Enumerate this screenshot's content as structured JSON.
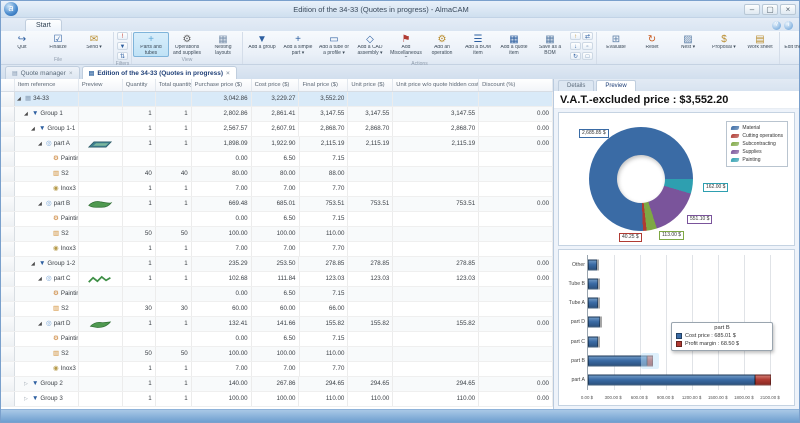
{
  "window": {
    "title": "Edition of the 34-33 (Quotes in progress) - AlmaCAM",
    "logo_letter": "a",
    "controls": {
      "minimize": "–",
      "maximize": "▢",
      "close": "×"
    }
  },
  "ribbon": {
    "tab": "Start",
    "help_icons": [
      "?",
      "i"
    ],
    "groups": [
      {
        "label": "File",
        "buttons": [
          {
            "label": "Quit",
            "glyph": "↪",
            "color": "#2d5fa0"
          },
          {
            "label": "Finalize",
            "glyph": "☑",
            "color": "#2d5fa0"
          },
          {
            "label": "Send",
            "glyph": "✉",
            "color": "#b98d2f",
            "dropdown": true
          }
        ]
      },
      {
        "label": "Filters",
        "buttons": [],
        "mini_cols": 1,
        "minis": [
          {
            "glyph": "!",
            "color": "#c0392b"
          },
          {
            "glyph": "▼",
            "color": "#2d5fa0"
          },
          {
            "glyph": "⇅",
            "color": "#2d5fa0"
          }
        ]
      },
      {
        "label": "View",
        "buttons": [
          {
            "label": "Parts and tubes",
            "glyph": "+",
            "color": "#5fa8d6",
            "selected": true
          },
          {
            "label": "Operations and supplies",
            "glyph": "⚙",
            "color": "#666666"
          },
          {
            "label": "Nesting layouts",
            "glyph": "▦",
            "color": "#7d93ad"
          }
        ]
      },
      {
        "label": "Actions",
        "buttons": [
          {
            "label": "Add a group",
            "glyph": "▼",
            "color": "#2d5fa0"
          },
          {
            "label": "Add a simple part",
            "glyph": "+",
            "color": "#2d5fa0",
            "dropdown": true
          },
          {
            "label": "Add a tube or a profile",
            "glyph": "▭",
            "color": "#2d5fa0",
            "dropdown": true
          },
          {
            "label": "Add a CAD assembly",
            "glyph": "◇",
            "color": "#2d5fa0",
            "dropdown": true
          },
          {
            "label": "Add Miscellaneous",
            "glyph": "⚑",
            "color": "#b03b33",
            "dropdown": true
          },
          {
            "label": "Add an operation",
            "glyph": "⚙",
            "color": "#b98d2f"
          },
          {
            "label": "Add a BOM item",
            "glyph": "☰",
            "color": "#2d5fa0"
          },
          {
            "label": "Add a quote item",
            "glyph": "▦",
            "color": "#2d5fa0"
          },
          {
            "label": "Save as a BOM",
            "glyph": "▦",
            "color": "#5a7da5"
          }
        ],
        "mini_cols": 2,
        "minis": [
          {
            "glyph": "↑",
            "color": "#b98d2f"
          },
          {
            "glyph": "↓",
            "color": "#2d5fa0"
          },
          {
            "glyph": "↻",
            "color": "#2d5fa0"
          },
          {
            "glyph": "⇄",
            "color": "#2d5fa0"
          },
          {
            "glyph": "▫",
            "color": "#5a7da5"
          },
          {
            "glyph": "□",
            "color": "#5a7da5"
          }
        ]
      },
      {
        "label": "",
        "buttons": [
          {
            "label": "Evaluate",
            "glyph": "⊞",
            "color": "#5a7da5"
          },
          {
            "label": "Reset",
            "glyph": "↻",
            "color": "#c85a1e"
          },
          {
            "label": "Nest",
            "glyph": "▨",
            "color": "#5a7da5",
            "dropdown": true
          },
          {
            "label": "Proposal",
            "glyph": "$",
            "color": "#b98d2f",
            "dropdown": true
          },
          {
            "label": "Work sheet",
            "glyph": "▤",
            "color": "#b98d2f"
          }
        ]
      },
      {
        "label": "Tasks",
        "buttons": [
          {
            "label": "Edit the part machining",
            "glyph": "◎",
            "color": "#3f9b49",
            "wide": true
          },
          {
            "label": "Modify the material/grade/machine",
            "glyph": "✎",
            "color": "#777777",
            "wide": true
          },
          {
            "label": "Edit the calculation modes",
            "glyph": "$",
            "color": "#2d5fa0",
            "wide": true
          }
        ]
      },
      {
        "label": "",
        "buttons": [
          {
            "label": "Laser 1",
            "glyph": "▢",
            "color": "#5a7da5",
            "dropdown": true
          },
          {
            "label": "Coupe Tube",
            "glyph": "▢",
            "color": "#5a7da5",
            "dropdown": true
          }
        ]
      }
    ]
  },
  "doc_tabs": [
    {
      "label": "Quote manager",
      "active": false
    },
    {
      "label": "Edition of the 34-33 (Quotes in progress)",
      "active": true
    }
  ],
  "table": {
    "columns": [
      "Item reference",
      "Preview",
      "Quantity",
      "Total quantity",
      "Purchase price ($)",
      "Cost price ($)",
      "Final price ($)",
      "Unit price ($)",
      "Unit price w/o quote hidden costs ...",
      "Discount (%)"
    ],
    "rows": [
      {
        "name": "34-33",
        "type": "quote",
        "lvl": 0,
        "exp": "open",
        "q": "",
        "tq": "",
        "pp": "3,042.86",
        "cp": "3,229.27",
        "fp": "3,552.20",
        "up": "",
        "uw": "",
        "d": ""
      },
      {
        "name": "Group 1",
        "type": "group",
        "lvl": 1,
        "exp": "open",
        "q": "1",
        "tq": "1",
        "pp": "2,802.86",
        "cp": "2,861.41",
        "fp": "3,147.55",
        "up": "3,147.55",
        "uw": "3,147.55",
        "d": "0.00"
      },
      {
        "name": "Group 1-1",
        "type": "group",
        "lvl": 2,
        "exp": "open",
        "q": "1",
        "tq": "1",
        "pp": "2,567.57",
        "cp": "2,607.91",
        "fp": "2,868.70",
        "up": "2,868.70",
        "uw": "2,868.70",
        "d": "0.00"
      },
      {
        "name": "part A",
        "type": "part",
        "lvl": 3,
        "exp": "open",
        "prev": "shapeA",
        "q": "1",
        "tq": "1",
        "pp": "1,898.09",
        "cp": "1,922.90",
        "fp": "2,115.19",
        "up": "2,115.19",
        "uw": "2,115.19",
        "d": "0.00"
      },
      {
        "name": "Painting",
        "type": "painting",
        "lvl": 4,
        "q": "",
        "tq": "",
        "pp": "0.00",
        "cp": "6.50",
        "fp": "7.15",
        "up": "",
        "uw": "",
        "d": ""
      },
      {
        "name": "S2",
        "type": "supply",
        "lvl": 4,
        "q": "40",
        "tq": "40",
        "pp": "80.00",
        "cp": "80.00",
        "fp": "88.00",
        "up": "",
        "uw": "",
        "d": ""
      },
      {
        "name": "Inox3",
        "type": "material",
        "lvl": 4,
        "q": "1",
        "tq": "1",
        "pp": "7.00",
        "cp": "7.00",
        "fp": "7.70",
        "up": "",
        "uw": "",
        "d": ""
      },
      {
        "name": "part B",
        "type": "part",
        "lvl": 3,
        "exp": "open",
        "prev": "shapeB",
        "q": "1",
        "tq": "1",
        "pp": "669.48",
        "cp": "685.01",
        "fp": "753.51",
        "up": "753.51",
        "uw": "753.51",
        "d": "0.00"
      },
      {
        "name": "Painting",
        "type": "painting",
        "lvl": 4,
        "q": "",
        "tq": "",
        "pp": "0.00",
        "cp": "6.50",
        "fp": "7.15",
        "up": "",
        "uw": "",
        "d": ""
      },
      {
        "name": "S2",
        "type": "supply",
        "lvl": 4,
        "q": "50",
        "tq": "50",
        "pp": "100.00",
        "cp": "100.00",
        "fp": "110.00",
        "up": "",
        "uw": "",
        "d": ""
      },
      {
        "name": "Inox3",
        "type": "material",
        "lvl": 4,
        "q": "1",
        "tq": "1",
        "pp": "7.00",
        "cp": "7.00",
        "fp": "7.70",
        "up": "",
        "uw": "",
        "d": ""
      },
      {
        "name": "Group 1-2",
        "type": "group",
        "lvl": 2,
        "exp": "open",
        "q": "1",
        "tq": "1",
        "pp": "235.29",
        "cp": "253.50",
        "fp": "278.85",
        "up": "278.85",
        "uw": "278.85",
        "d": "0.00"
      },
      {
        "name": "part C",
        "type": "part",
        "lvl": 3,
        "exp": "open",
        "prev": "shapeC",
        "q": "1",
        "tq": "1",
        "pp": "102.68",
        "cp": "111.84",
        "fp": "123.03",
        "up": "123.03",
        "uw": "123.03",
        "d": "0.00"
      },
      {
        "name": "Painting",
        "type": "painting",
        "lvl": 4,
        "q": "",
        "tq": "",
        "pp": "0.00",
        "cp": "6.50",
        "fp": "7.15",
        "up": "",
        "uw": "",
        "d": ""
      },
      {
        "name": "S2",
        "type": "supply",
        "lvl": 4,
        "q": "30",
        "tq": "30",
        "pp": "60.00",
        "cp": "60.00",
        "fp": "66.00",
        "up": "",
        "uw": "",
        "d": ""
      },
      {
        "name": "part D",
        "type": "part",
        "lvl": 3,
        "exp": "open",
        "prev": "shapeD",
        "q": "1",
        "tq": "1",
        "pp": "132.41",
        "cp": "141.66",
        "fp": "155.82",
        "up": "155.82",
        "uw": "155.82",
        "d": "0.00"
      },
      {
        "name": "Painting",
        "type": "painting",
        "lvl": 4,
        "q": "",
        "tq": "",
        "pp": "0.00",
        "cp": "6.50",
        "fp": "7.15",
        "up": "",
        "uw": "",
        "d": ""
      },
      {
        "name": "S2",
        "type": "supply",
        "lvl": 4,
        "q": "50",
        "tq": "50",
        "pp": "100.00",
        "cp": "100.00",
        "fp": "110.00",
        "up": "",
        "uw": "",
        "d": ""
      },
      {
        "name": "Inox3",
        "type": "material",
        "lvl": 4,
        "q": "1",
        "tq": "1",
        "pp": "7.00",
        "cp": "7.00",
        "fp": "7.70",
        "up": "",
        "uw": "",
        "d": ""
      },
      {
        "name": "Group 2",
        "type": "group",
        "lvl": 1,
        "exp": "closed",
        "q": "1",
        "tq": "1",
        "pp": "140.00",
        "cp": "267.86",
        "fp": "294.65",
        "up": "294.65",
        "uw": "294.65",
        "d": "0.00"
      },
      {
        "name": "Group 3",
        "type": "group",
        "lvl": 1,
        "exp": "closed",
        "q": "1",
        "tq": "1",
        "pp": "100.00",
        "cp": "100.00",
        "fp": "110.00",
        "up": "110.00",
        "uw": "110.00",
        "d": "0.00"
      }
    ]
  },
  "details": {
    "tabs": [
      "Details",
      "Preview"
    ],
    "active_tab": "Preview",
    "title": "V.A.T.-excluded price : $3,552.20"
  },
  "chart_data": [
    {
      "type": "pie",
      "subtype": "donut",
      "title": "V.A.T.-excluded price : $3,552.20",
      "legend_position": "top-right",
      "start_angle_deg": 90,
      "clockwise_order": [
        "Painting",
        "Supplies",
        "Subcontracting",
        "Cutting operations",
        "Material"
      ],
      "series": [
        {
          "name": "Material",
          "value": 2685.85,
          "label": "2,685.85 $",
          "color": "#3a6ba5"
        },
        {
          "name": "Cutting operations",
          "value": 40.25,
          "label": "40.25 $",
          "color": "#b03b33"
        },
        {
          "name": "Subcontracting",
          "value": 113.0,
          "label": "113.00 $",
          "color": "#7ea844"
        },
        {
          "name": "Supplies",
          "value": 551.1,
          "label": "551.10 $",
          "color": "#7a549b"
        },
        {
          "name": "Painting",
          "value": 162.0,
          "label": "162.00 $",
          "color": "#2e9fb0"
        }
      ]
    },
    {
      "type": "bar",
      "orientation": "horizontal",
      "stacked": true,
      "categories_top_to_bottom": [
        "Other",
        "Tube B",
        "Tube A",
        "part D",
        "part C",
        "part B",
        "part A"
      ],
      "series": [
        {
          "name": "Cost price",
          "color": "#3a6ba5",
          "values": [
            100.0,
            110.0,
            120.0,
            141.66,
            111.84,
            685.01,
            1922.9
          ]
        },
        {
          "name": "Profit margin",
          "color": "#b03b33",
          "values": [
            10.0,
            11.0,
            12.0,
            14.17,
            11.18,
            68.5,
            192.29
          ]
        }
      ],
      "x_ticks": [
        "0.00 $",
        "300.00 $",
        "600.00 $",
        "900.00 $",
        "1200.00 $",
        "1500.00 $",
        "1800.00 $",
        "2100.00 $"
      ],
      "x_tick_values": [
        0,
        300,
        600,
        900,
        1200,
        1500,
        1800,
        2100
      ],
      "xmax": 2260,
      "tooltip": {
        "title": "part B",
        "lines": [
          {
            "color": "#3a6ba5",
            "text": "Cost price : 685.01 $"
          },
          {
            "color": "#b03b33",
            "text": "Profit margin : 68.50 $"
          }
        ]
      },
      "highlighted_bar": "part B"
    }
  ]
}
